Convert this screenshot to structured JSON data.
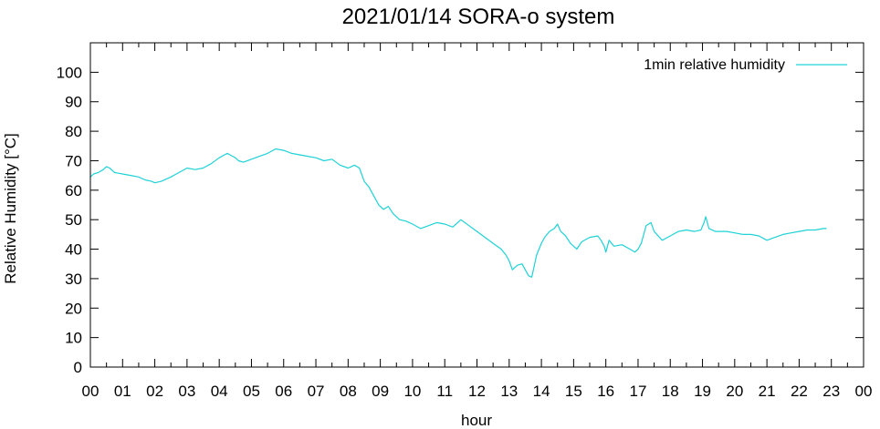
{
  "chart_data": {
    "type": "line",
    "title": "2021/01/14 SORA-o system",
    "xlabel": "hour",
    "ylabel": "Relative Humidity [°C]",
    "xlim": [
      0,
      24
    ],
    "ylim": [
      0,
      110
    ],
    "x_ticks": [
      {
        "value": 0,
        "label": "00"
      },
      {
        "value": 1,
        "label": "01"
      },
      {
        "value": 2,
        "label": "02"
      },
      {
        "value": 3,
        "label": "03"
      },
      {
        "value": 4,
        "label": "04"
      },
      {
        "value": 5,
        "label": "05"
      },
      {
        "value": 6,
        "label": "06"
      },
      {
        "value": 7,
        "label": "07"
      },
      {
        "value": 8,
        "label": "08"
      },
      {
        "value": 9,
        "label": "09"
      },
      {
        "value": 10,
        "label": "10"
      },
      {
        "value": 11,
        "label": "11"
      },
      {
        "value": 12,
        "label": "12"
      },
      {
        "value": 13,
        "label": "13"
      },
      {
        "value": 14,
        "label": "14"
      },
      {
        "value": 15,
        "label": "15"
      },
      {
        "value": 16,
        "label": "16"
      },
      {
        "value": 17,
        "label": "17"
      },
      {
        "value": 18,
        "label": "18"
      },
      {
        "value": 19,
        "label": "19"
      },
      {
        "value": 20,
        "label": "20"
      },
      {
        "value": 21,
        "label": "21"
      },
      {
        "value": 22,
        "label": "22"
      },
      {
        "value": 23,
        "label": "23"
      },
      {
        "value": 24,
        "label": "00"
      }
    ],
    "y_ticks": [
      0,
      10,
      20,
      30,
      40,
      50,
      60,
      70,
      80,
      90,
      100
    ],
    "grid": false,
    "legend_position": "top-right",
    "series": [
      {
        "name": "1min relative humidity",
        "color": "#1fd2d6",
        "x": [
          0.0,
          0.1,
          0.25,
          0.4,
          0.5,
          0.6,
          0.75,
          1.0,
          1.25,
          1.5,
          1.7,
          1.9,
          2.0,
          2.2,
          2.5,
          2.75,
          3.0,
          3.25,
          3.5,
          3.75,
          4.0,
          4.25,
          4.5,
          4.6,
          4.75,
          5.0,
          5.25,
          5.5,
          5.75,
          6.0,
          6.25,
          6.5,
          6.75,
          7.0,
          7.25,
          7.5,
          7.75,
          8.0,
          8.1,
          8.2,
          8.35,
          8.5,
          8.65,
          8.8,
          8.95,
          9.1,
          9.25,
          9.4,
          9.6,
          9.8,
          10.0,
          10.25,
          10.5,
          10.75,
          11.0,
          11.25,
          11.5,
          11.75,
          12.0,
          12.25,
          12.5,
          12.75,
          12.9,
          13.0,
          13.1,
          13.25,
          13.4,
          13.5,
          13.55,
          13.6,
          13.7,
          13.75,
          13.85,
          14.0,
          14.1,
          14.25,
          14.4,
          14.5,
          14.6,
          14.75,
          14.9,
          15.0,
          15.1,
          15.25,
          15.5,
          15.75,
          15.85,
          15.95,
          16.0,
          16.1,
          16.25,
          16.5,
          16.75,
          16.9,
          17.0,
          17.1,
          17.25,
          17.4,
          17.5,
          17.75,
          18.0,
          18.25,
          18.5,
          18.75,
          18.95,
          19.05,
          19.1,
          19.2,
          19.4,
          19.6,
          19.75,
          20.0,
          20.25,
          20.5,
          20.75,
          21.0,
          21.25,
          21.5,
          21.75,
          22.0,
          22.25,
          22.5,
          22.75,
          22.85
        ],
        "values": [
          64.5,
          65.5,
          66,
          67,
          68,
          67.5,
          66,
          65.5,
          65,
          64.5,
          63.5,
          63,
          62.5,
          63,
          64.5,
          66,
          67.5,
          67,
          67.5,
          69,
          71,
          72.5,
          71,
          70,
          69.5,
          70.5,
          71.5,
          72.5,
          74,
          73.5,
          72.5,
          72,
          71.5,
          71,
          70,
          70.5,
          68.5,
          67.5,
          68,
          68.5,
          67.5,
          63,
          61,
          58,
          55,
          53.5,
          54.5,
          52,
          50,
          49.5,
          48.5,
          47,
          48,
          49,
          48.5,
          47.5,
          50,
          48,
          46,
          44,
          42,
          40,
          38,
          36,
          33,
          34.5,
          35,
          33,
          32,
          31,
          30.5,
          33,
          38,
          42,
          44,
          46,
          47,
          48.5,
          46,
          44.5,
          42,
          41,
          40,
          42.5,
          44,
          44.5,
          43,
          41,
          39,
          43,
          41,
          41.5,
          40,
          39,
          40,
          42,
          48,
          49,
          46,
          43,
          44.5,
          46,
          46.5,
          46,
          46.5,
          49,
          51,
          47,
          46,
          46,
          46,
          45.5,
          45,
          45,
          44.5,
          43,
          44,
          45,
          45.5,
          46,
          46.5,
          46.5,
          47,
          47
        ]
      }
    ]
  }
}
